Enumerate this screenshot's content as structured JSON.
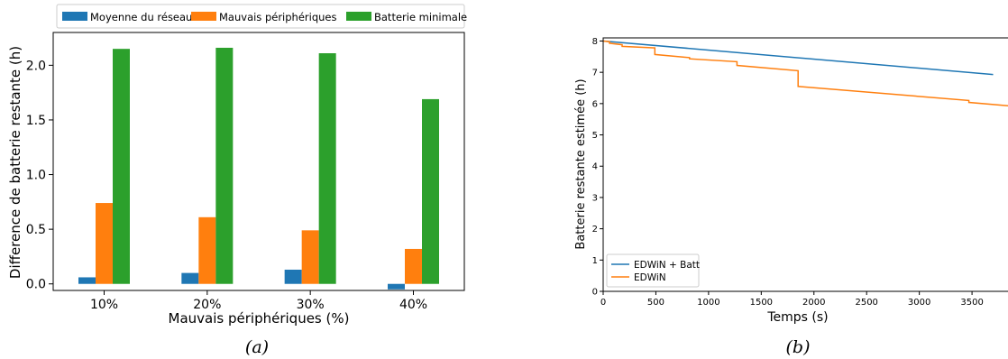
{
  "chart_data": [
    {
      "type": "bar",
      "caption": "(a)",
      "categories": [
        "10%",
        "20%",
        "30%",
        "40%"
      ],
      "series": [
        {
          "name": "Moyenne du réseau",
          "color": "#1f77b4",
          "values": [
            0.06,
            0.1,
            0.13,
            -0.05
          ]
        },
        {
          "name": "Mauvais périphériques",
          "color": "#ff7f0e",
          "values": [
            0.74,
            0.61,
            0.49,
            0.32
          ]
        },
        {
          "name": "Batterie minimale",
          "color": "#2ca02c",
          "values": [
            2.15,
            2.16,
            2.11,
            1.69
          ]
        }
      ],
      "xlabel": "Mauvais périphériques (%)",
      "ylabel": "Difference de batterie restante (h)",
      "ylim": [
        -0.06,
        2.3
      ],
      "yticks": [
        0.0,
        0.5,
        1.0,
        1.5,
        2.0
      ],
      "ytick_labels": [
        "0.0",
        "0.5",
        "1.0",
        "1.5",
        "2.0"
      ],
      "legend_position": "top-outside",
      "grid": false
    },
    {
      "type": "line",
      "caption": "(b)",
      "series": [
        {
          "name": "EDWiN + Batt",
          "color": "#1f77b4",
          "x": [
            0,
            3700
          ],
          "y": [
            8.0,
            6.93
          ]
        },
        {
          "name": "EDWiN",
          "color": "#ff7f0e",
          "x": [
            0,
            60,
            60,
            180,
            180,
            490,
            490,
            820,
            820,
            1270,
            1270,
            1850,
            1850,
            3470,
            3470,
            3850
          ],
          "y": [
            8.0,
            7.98,
            7.93,
            7.88,
            7.83,
            7.78,
            7.57,
            7.47,
            7.43,
            7.34,
            7.22,
            7.05,
            6.55,
            6.1,
            6.04,
            5.93
          ]
        }
      ],
      "xlabel": "Temps (s)",
      "ylabel": "Batterie restante estimée (h)",
      "xlim": [
        0,
        3850
      ],
      "ylim": [
        0,
        8.1
      ],
      "xticks": [
        0,
        500,
        1000,
        1500,
        2000,
        2500,
        3000,
        3500
      ],
      "yticks": [
        0,
        1,
        2,
        3,
        4,
        5,
        6,
        7,
        8
      ],
      "legend_position": "lower-left",
      "grid": false
    }
  ]
}
